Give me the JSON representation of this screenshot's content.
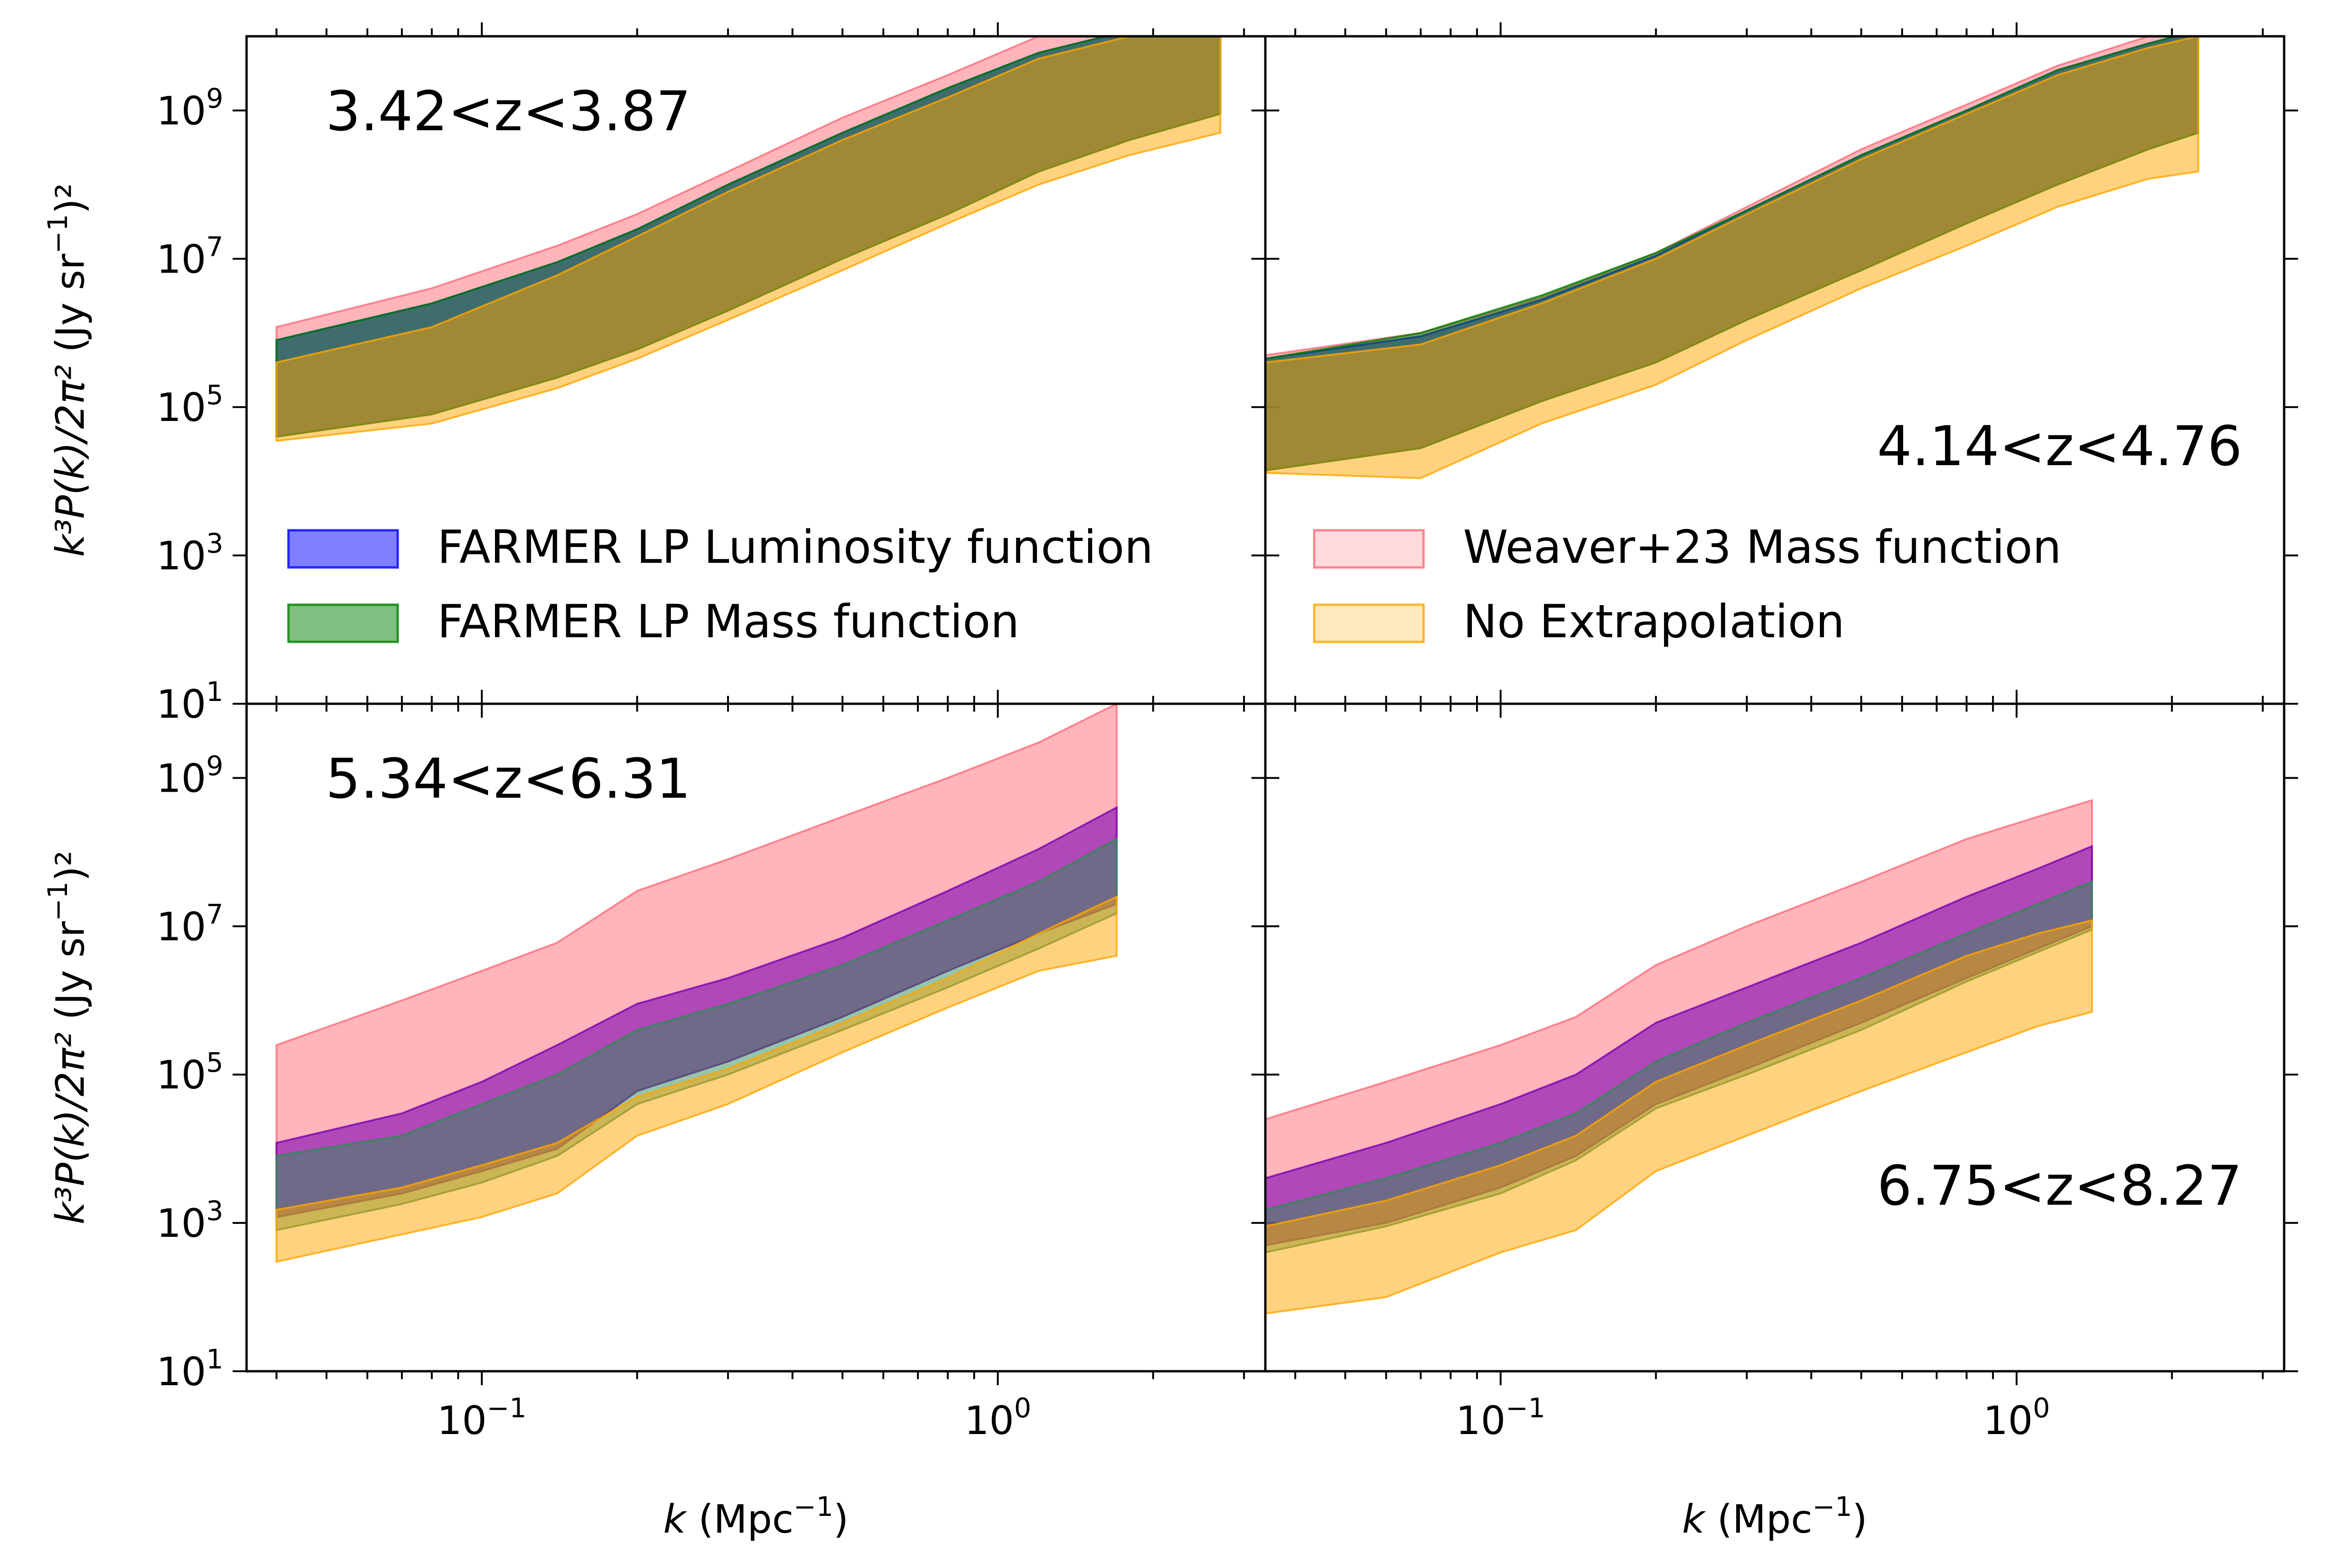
{
  "figure": {
    "xlabel_base": "k (Mpc",
    "xlabel_exp": "−1",
    "xlabel_close": ")",
    "ylabel_html": "k³P(k)/2π² (Jy sr⁻¹)²",
    "ylabel_math": "k³P(k)/2π²",
    "ylabel_units": "(Jy sr",
    "ylabel_units_exp": "−1",
    "ylabel_units_close": ")²",
    "x_tick_labels": [
      {
        "base": "10",
        "exp": "−1",
        "value": 0.1
      },
      {
        "base": "10",
        "exp": "0",
        "value": 1.0
      }
    ],
    "y_tick_labels": [
      {
        "base": "10",
        "exp": "1",
        "value": 10
      },
      {
        "base": "10",
        "exp": "3",
        "value": 1000
      },
      {
        "base": "10",
        "exp": "5",
        "value": 100000
      },
      {
        "base": "10",
        "exp": "7",
        "value": 10000000
      },
      {
        "base": "10",
        "exp": "9",
        "value": 1000000000
      }
    ]
  },
  "legend": {
    "entries": [
      {
        "label": "FARMER LP Luminosity function",
        "color": "#0000ff"
      },
      {
        "label": "FARMER LP Mass function",
        "color": "#008000"
      },
      {
        "label": "Weaver+23 Mass function",
        "color": "#ff6b78"
      },
      {
        "label": "No Extrapolation",
        "color": "#ffa500"
      }
    ]
  },
  "chart_data": [
    {
      "type": "area",
      "title": "3.42<z<3.87",
      "xlabel": "k (Mpc⁻¹)",
      "ylabel": "k³P(k)/2π² (Jy sr⁻¹)²",
      "xscale": "log",
      "yscale": "log",
      "xlim": [
        0.035,
        3.3
      ],
      "ylim": [
        10,
        10000000000.0
      ],
      "x": [
        0.04,
        0.08,
        0.14,
        0.2,
        0.3,
        0.5,
        0.8,
        1.2,
        1.8,
        2.7
      ],
      "series": [
        {
          "name": "Weaver+23 Mass function",
          "color": "#ff6b78",
          "alpha": 0.5,
          "lower": [
            40000.0,
            80000.0,
            250000.0,
            600000.0,
            2000000.0,
            10000000.0,
            40000000.0,
            150000000.0,
            400000000.0,
            900000000.0
          ],
          "upper": [
            1200000.0,
            4000000.0,
            15000000.0,
            40000000.0,
            150000000.0,
            800000000.0,
            3000000000.0,
            10000000000.0,
            20000000000.0,
            30000000000.0
          ]
        },
        {
          "name": "FARMER LP Luminosity function",
          "color": "#0000ff",
          "alpha": 0.5,
          "lower": [
            40000.0,
            80000.0,
            250000.0,
            600000.0,
            2000000.0,
            10000000.0,
            40000000.0,
            150000000.0,
            400000000.0,
            900000000.0
          ],
          "upper": [
            800000.0,
            2500000.0,
            9000000.0,
            25000000.0,
            100000000.0,
            500000000.0,
            2000000000.0,
            6000000000.0,
            12000000000.0,
            20000000000.0
          ]
        },
        {
          "name": "FARMER LP Mass function",
          "color": "#008000",
          "alpha": 0.5,
          "lower": [
            40000.0,
            80000.0,
            250000.0,
            600000.0,
            2000000.0,
            10000000.0,
            40000000.0,
            150000000.0,
            400000000.0,
            900000000.0
          ],
          "upper": [
            800000.0,
            2500000.0,
            9000000.0,
            25000000.0,
            100000000.0,
            500000000.0,
            2000000000.0,
            6000000000.0,
            12000000000.0,
            20000000000.0
          ]
        },
        {
          "name": "No Extrapolation",
          "color": "#ffa500",
          "alpha": 0.5,
          "lower": [
            35000.0,
            60000.0,
            180000.0,
            450000.0,
            1500000.0,
            7000000.0,
            30000000.0,
            100000000.0,
            250000000.0,
            500000000.0
          ],
          "upper": [
            400000.0,
            1200000.0,
            6000000.0,
            20000000.0,
            80000000.0,
            400000000.0,
            1500000000.0,
            5000000000.0,
            10000000000.0,
            15000000000.0
          ]
        }
      ]
    },
    {
      "type": "area",
      "title": "4.14<z<4.76",
      "xlabel": "k (Mpc⁻¹)",
      "ylabel": "k³P(k)/2π² (Jy sr⁻¹)²",
      "xscale": "log",
      "yscale": "log",
      "xlim": [
        0.035,
        3.3
      ],
      "ylim": [
        10,
        10000000000.0
      ],
      "x": [
        0.035,
        0.07,
        0.12,
        0.2,
        0.3,
        0.5,
        0.8,
        1.2,
        1.8,
        2.25
      ],
      "series": [
        {
          "name": "Weaver+23 Mass function",
          "color": "#ff6b78",
          "alpha": 0.5,
          "lower": [
            14000.0,
            28000.0,
            120000.0,
            400000.0,
            1500000.0,
            7000000.0,
            30000000.0,
            100000000.0,
            300000000.0,
            500000000.0
          ],
          "upper": [
            500000.0,
            1000000.0,
            3000000.0,
            12000000.0,
            50000000.0,
            300000000.0,
            1200000000.0,
            4000000000.0,
            10000000000.0,
            14000000000.0
          ]
        },
        {
          "name": "FARMER LP Luminosity function",
          "color": "#0000ff",
          "alpha": 0.5,
          "lower": [
            14000.0,
            28000.0,
            120000.0,
            400000.0,
            1500000.0,
            7000000.0,
            30000000.0,
            100000000.0,
            300000000.0,
            500000000.0
          ],
          "upper": [
            450000.0,
            900000.0,
            2800000.0,
            11000000.0,
            45000000.0,
            250000000.0,
            1000000000.0,
            3500000000.0,
            8000000000.0,
            12000000000.0
          ]
        },
        {
          "name": "FARMER LP Mass function",
          "color": "#008000",
          "alpha": 0.5,
          "lower": [
            14000.0,
            28000.0,
            120000.0,
            400000.0,
            1500000.0,
            7000000.0,
            30000000.0,
            100000000.0,
            300000000.0,
            500000000.0
          ],
          "upper": [
            450000.0,
            1000000.0,
            3200000.0,
            12000000.0,
            45000000.0,
            250000000.0,
            1000000000.0,
            3500000000.0,
            8000000000.0,
            12000000000.0
          ]
        },
        {
          "name": "No Extrapolation",
          "color": "#ffa500",
          "alpha": 0.5,
          "lower": [
            13000.0,
            11000.0,
            60000.0,
            200000.0,
            800000.0,
            4000000.0,
            15000000.0,
            50000000.0,
            120000000.0,
            150000000.0
          ],
          "upper": [
            400000.0,
            700000.0,
            2500000.0,
            10000000.0,
            40000000.0,
            220000000.0,
            900000000.0,
            3000000000.0,
            7000000000.0,
            10000000000.0
          ]
        }
      ]
    },
    {
      "type": "area",
      "title": "5.34<z<6.31",
      "xlabel": "k (Mpc⁻¹)",
      "ylabel": "k³P(k)/2π² (Jy sr⁻¹)²",
      "xscale": "log",
      "yscale": "log",
      "xlim": [
        0.035,
        3.3
      ],
      "ylim": [
        10,
        10000000000.0
      ],
      "x": [
        0.04,
        0.07,
        0.1,
        0.14,
        0.2,
        0.3,
        0.5,
        0.8,
        1.2,
        1.7
      ],
      "series": [
        {
          "name": "Weaver+23 Mass function",
          "color": "#ff6b78",
          "alpha": 0.5,
          "lower": [
            1200.0,
            2500.0,
            5000.0,
            10000.0,
            60000.0,
            150000.0,
            600000.0,
            2500000.0,
            8000000.0,
            20000000.0
          ],
          "upper": [
            250000.0,
            1000000.0,
            2500000.0,
            6000000.0,
            30000000.0,
            80000000.0,
            300000000.0,
            1000000000.0,
            3000000000.0,
            10000000000.0
          ]
        },
        {
          "name": "FARMER LP Luminosity function",
          "color": "#7b00b4",
          "alpha": 0.6,
          "lower": [
            1200.0,
            2500.0,
            5000.0,
            10000.0,
            60000.0,
            150000.0,
            600000.0,
            2500000.0,
            8000000.0,
            20000000.0
          ],
          "upper": [
            12000.0,
            30000.0,
            80000.0,
            250000.0,
            900000.0,
            2000000.0,
            7000000.0,
            30000000.0,
            110000000.0,
            400000000.0
          ]
        },
        {
          "name": "FARMER LP Mass function",
          "color": "#2e8b57",
          "alpha": 0.5,
          "lower": [
            800.0,
            1800.0,
            3500.0,
            8000.0,
            40000.0,
            100000.0,
            400000.0,
            1500000.0,
            5000000.0,
            15000000.0
          ],
          "upper": [
            8000.0,
            15000.0,
            40000.0,
            100000.0,
            400000.0,
            900000.0,
            3000000.0,
            12000000.0,
            40000000.0,
            150000000.0
          ]
        },
        {
          "name": "No Extrapolation",
          "color": "#ffa500",
          "alpha": 0.5,
          "lower": [
            300.0,
            700.0,
            1200.0,
            2500.0,
            15000.0,
            40000.0,
            200000.0,
            800000.0,
            2500000.0,
            4000000.0
          ],
          "upper": [
            1500.0,
            3000.0,
            6000.0,
            12000.0,
            50000.0,
            120000.0,
            500000.0,
            2000000.0,
            8000000.0,
            25000000.0
          ]
        }
      ]
    },
    {
      "type": "area",
      "title": "6.75<z<8.27",
      "xlabel": "k (Mpc⁻¹)",
      "ylabel": "k³P(k)/2π² (Jy sr⁻¹)²",
      "xscale": "log",
      "yscale": "log",
      "xlim": [
        0.035,
        3.3
      ],
      "ylim": [
        10,
        10000000000.0
      ],
      "x": [
        0.035,
        0.06,
        0.1,
        0.14,
        0.2,
        0.3,
        0.5,
        0.8,
        1.1,
        1.4
      ],
      "series": [
        {
          "name": "Weaver+23 Mass function",
          "color": "#ff6b78",
          "alpha": 0.5,
          "lower": [
            500.0,
            1000.0,
            3000.0,
            8000.0,
            40000.0,
            120000.0,
            500000.0,
            2000000.0,
            5000000.0,
            10000000.0
          ],
          "upper": [
            25000.0,
            80000.0,
            250000.0,
            600000.0,
            3000000.0,
            10000000.0,
            40000000.0,
            150000000.0,
            300000000.0,
            500000000.0
          ]
        },
        {
          "name": "FARMER LP Luminosity function",
          "color": "#7b00b4",
          "alpha": 0.6,
          "lower": [
            500.0,
            1000.0,
            3000.0,
            8000.0,
            40000.0,
            120000.0,
            500000.0,
            2000000.0,
            5000000.0,
            10000000.0
          ],
          "upper": [
            4000.0,
            12000.0,
            40000.0,
            100000.0,
            500000.0,
            1500000.0,
            6000000.0,
            25000000.0,
            60000000.0,
            120000000.0
          ]
        },
        {
          "name": "FARMER LP Mass function",
          "color": "#2e8b57",
          "alpha": 0.5,
          "lower": [
            400.0,
            900.0,
            2500.0,
            7000.0,
            35000.0,
            100000.0,
            400000.0,
            1800000.0,
            4500000.0,
            9000000.0
          ],
          "upper": [
            1500.0,
            4000.0,
            12000.0,
            30000.0,
            150000.0,
            500000.0,
            2000000.0,
            8000000.0,
            20000000.0,
            40000000.0
          ]
        },
        {
          "name": "No Extrapolation",
          "color": "#ffa500",
          "alpha": 0.5,
          "lower": [
            60,
            100.0,
            400.0,
            800.0,
            5000.0,
            15000.0,
            60000.0,
            200000.0,
            450000.0,
            700000.0
          ],
          "upper": [
            900.0,
            2000.0,
            6000.0,
            15000.0,
            80000.0,
            250000.0,
            1000000.0,
            4000000.0,
            8000000.0,
            12000000.0
          ]
        }
      ]
    }
  ]
}
